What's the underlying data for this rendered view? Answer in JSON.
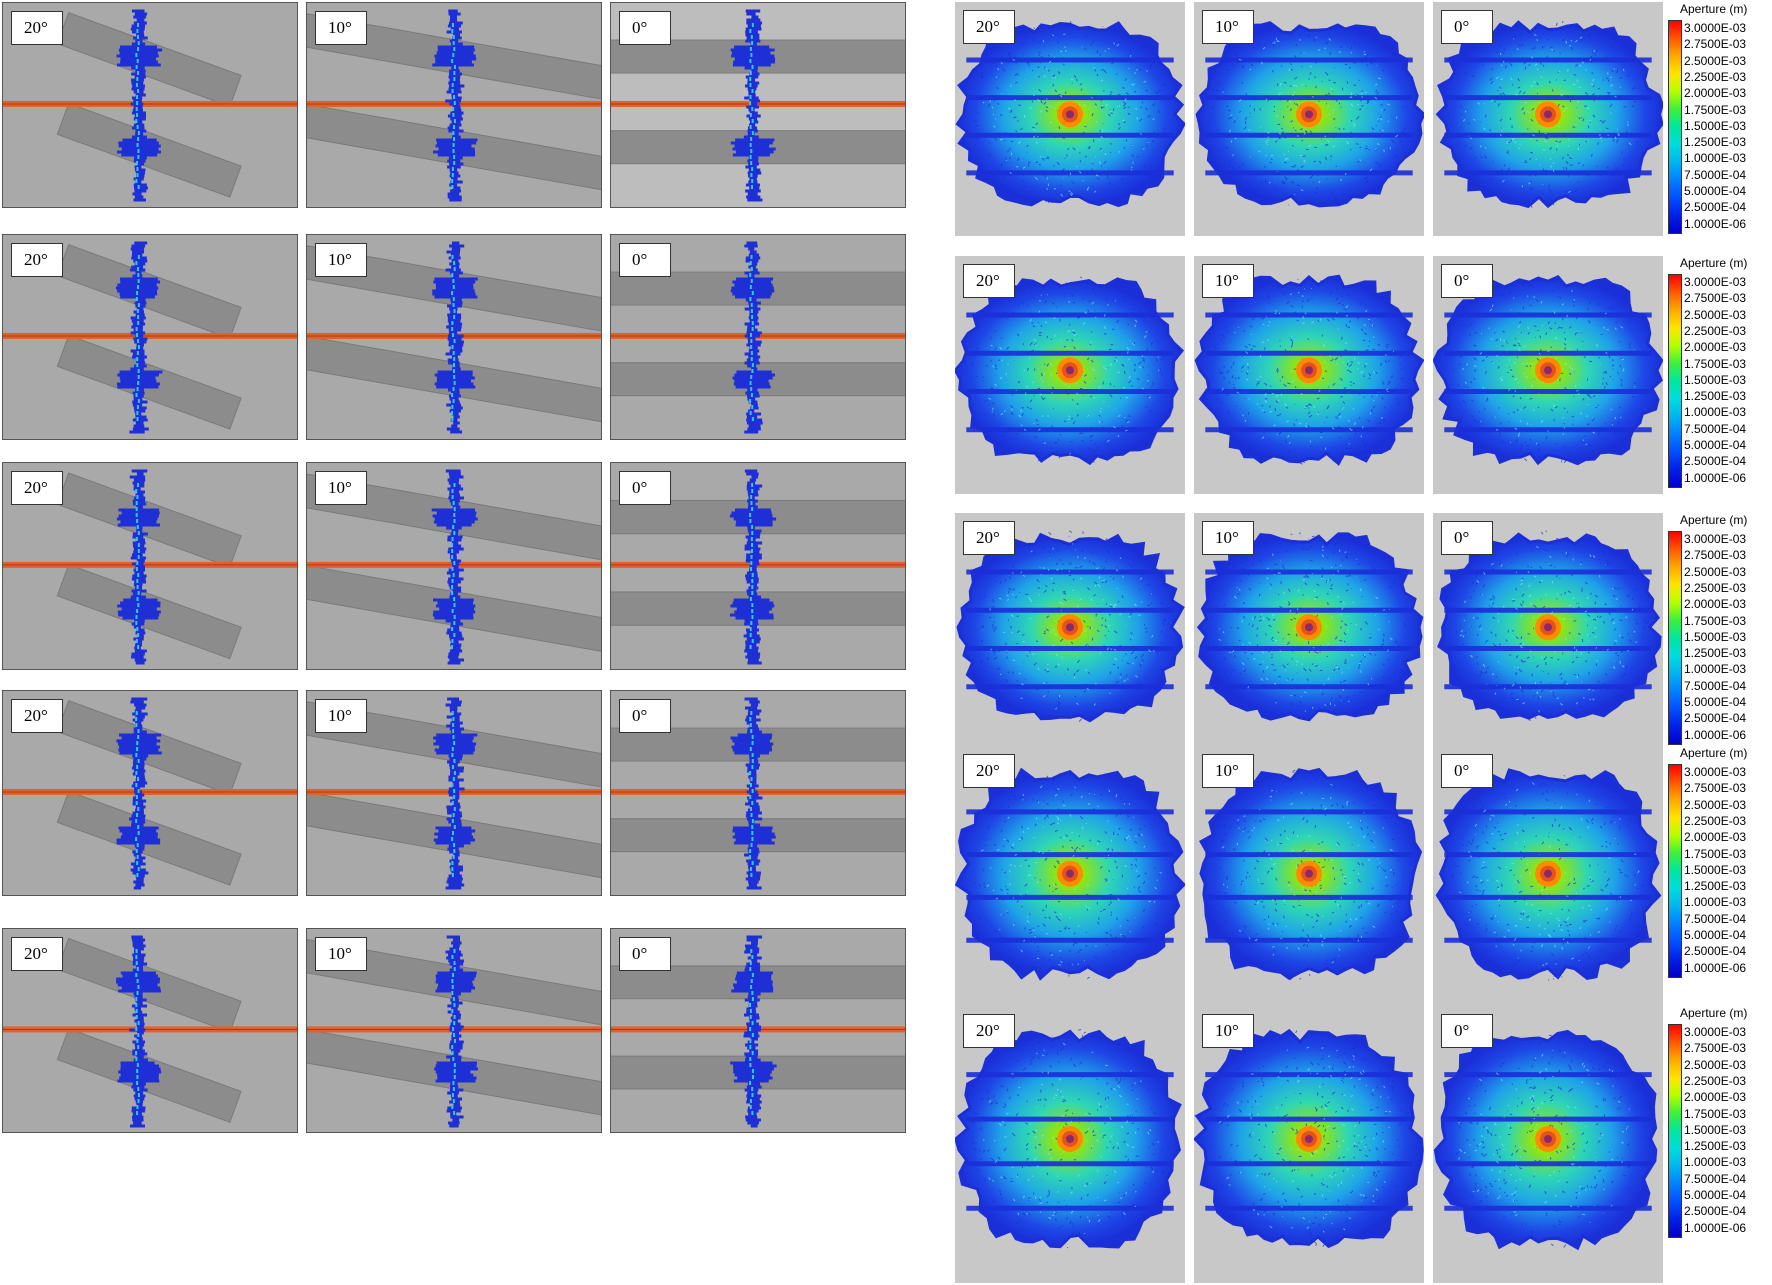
{
  "angles": [
    "20°",
    "10°",
    "0°"
  ],
  "colorbar": {
    "title": "Aperture (m)",
    "ticks": [
      "3.0000E-03",
      "2.7500E-03",
      "2.5000E-03",
      "2.2500E-03",
      "2.0000E-03",
      "1.7500E-03",
      "1.5000E-03",
      "1.2500E-03",
      "1.0000E-03",
      "7.5000E-04",
      "5.0000E-04",
      "2.5000E-04",
      "1.0000E-06"
    ],
    "colors": [
      "#ff0000",
      "#ff5a00",
      "#ffaa00",
      "#ffe600",
      "#b4ff00",
      "#3cf03c",
      "#00e6a0",
      "#00dcdc",
      "#00b4f0",
      "#0080ff",
      "#0050ff",
      "#0020e6",
      "#0000c8"
    ]
  },
  "colors": {
    "background": "#a9a9a9",
    "background_light": "#bdbdbd",
    "layer_band": "#8c8c8c",
    "interface_line": "#e0622a",
    "fracture_blue": "#1e2fd6",
    "fracture_cyan": "#2ec7e6",
    "hotspot": "#e5531b"
  },
  "side_view_rows": 5,
  "face_view_rows": 5
}
